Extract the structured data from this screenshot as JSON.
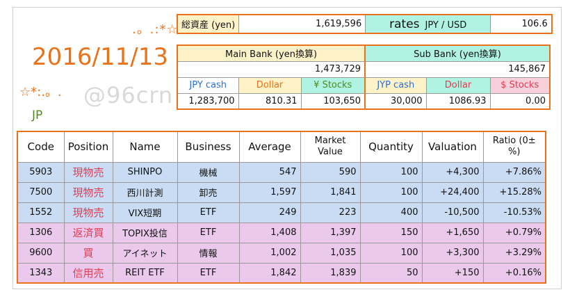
{
  "decor": {
    "stars_top": ".。.:*☆",
    "date": "2016/11/13",
    "stars_mid": "☆*:.。.",
    "watermark": "@96crn",
    "market": "JP"
  },
  "summary": {
    "total_label": "総資産 (yen)",
    "total_value": "1,619,596",
    "rates_label": "rates",
    "rates_pair": "JPY / USD",
    "rates_value": "106.6"
  },
  "main_bank": {
    "title": "Main Bank (yen換算)",
    "total": "1,473,729",
    "labels": [
      "JPY cash",
      "Dollar",
      "¥ Stocks"
    ],
    "values": [
      "1,283,700",
      "810.31",
      "103,650"
    ]
  },
  "sub_bank": {
    "title": "Sub Bank (yen換算)",
    "total": "145,867",
    "labels": [
      "JYP cash",
      "Dollar",
      "$ Stocks"
    ],
    "values": [
      "30,000",
      "1086.93",
      "0.00"
    ]
  },
  "holdings": {
    "headers": [
      "Code",
      "Position",
      "Name",
      "Business",
      "Average",
      "Market Value",
      "Quantity",
      "Valuation",
      "Ratio (0±%)"
    ],
    "rows": [
      {
        "code": "5903",
        "position": "現物売",
        "name": "SHINPO",
        "business": "機械",
        "average": "547",
        "market": "590",
        "quantity": "100",
        "valuation": "+4,300",
        "ratio": "+7.86%"
      },
      {
        "code": "7500",
        "position": "現物売",
        "name": "西川計測",
        "business": "卸売",
        "average": "1,597",
        "market": "1,841",
        "quantity": "100",
        "valuation": "+24,400",
        "ratio": "+15.28%"
      },
      {
        "code": "1552",
        "position": "現物売",
        "name": "VIX短期",
        "business": "ETF",
        "average": "249",
        "market": "223",
        "quantity": "400",
        "valuation": "-10,500",
        "ratio": "-10.53%"
      },
      {
        "code": "1306",
        "position": "返済買",
        "name": "TOPIX投信",
        "business": "ETF",
        "average": "1,408",
        "market": "1,397",
        "quantity": "150",
        "valuation": "+1,650",
        "ratio": "+0.79%"
      },
      {
        "code": "9600",
        "position": "買",
        "name": "アイネット",
        "business": "情報",
        "average": "1,002",
        "market": "1,035",
        "quantity": "100",
        "valuation": "+3,300",
        "ratio": "+3.29%"
      },
      {
        "code": "1343",
        "position": "信用売",
        "name": "REIT ETF",
        "business": "ETF",
        "average": "1,842",
        "market": "1,839",
        "quantity": "50",
        "valuation": "+150",
        "ratio": "+0.16%"
      }
    ]
  }
}
